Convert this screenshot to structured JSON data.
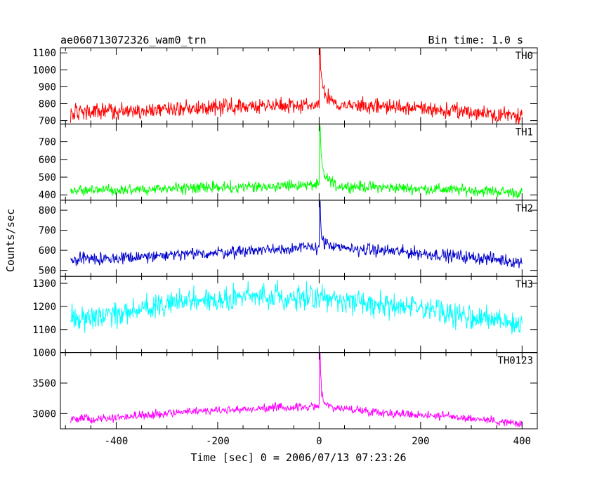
{
  "header": {
    "left": "ae060713072326_wam0_trn",
    "right": "Bin time: 1.0 s"
  },
  "chart_data": {
    "type": "line",
    "xlabel": "Time [sec] 0 = 2006/07/13 07:23:26",
    "ylabel": "Counts/sec",
    "xlim": [
      -510,
      430
    ],
    "xticks": [
      -400,
      -200,
      0,
      200,
      400
    ],
    "xrange": [
      -490,
      400
    ],
    "panels": [
      {
        "name": "TH0",
        "color": "#ff0000",
        "ylim": [
          680,
          1130
        ],
        "yticks": [
          700,
          800,
          900,
          1000,
          1100
        ],
        "baseline": [
          [
            -490,
            745
          ],
          [
            -400,
            755
          ],
          [
            -250,
            775
          ],
          [
            -100,
            790
          ],
          [
            -10,
            795
          ],
          [
            50,
            790
          ],
          [
            150,
            780
          ],
          [
            250,
            760
          ],
          [
            350,
            740
          ],
          [
            400,
            725
          ]
        ],
        "noise": 32,
        "peak": {
          "x": 2,
          "y": 1125,
          "decay": [
            [
              5,
              960
            ],
            [
              10,
              880
            ],
            [
              20,
              830
            ]
          ]
        }
      },
      {
        "name": "TH1",
        "color": "#00ff00",
        "ylim": [
          370,
          800
        ],
        "yticks": [
          400,
          500,
          600,
          700
        ],
        "baseline": [
          [
            -490,
            425
          ],
          [
            -400,
            430
          ],
          [
            -250,
            440
          ],
          [
            -100,
            450
          ],
          [
            -10,
            455
          ],
          [
            50,
            450
          ],
          [
            150,
            440
          ],
          [
            250,
            430
          ],
          [
            350,
            420
          ],
          [
            400,
            410
          ]
        ],
        "noise": 22,
        "peak": {
          "x": 2,
          "y": 790,
          "decay": [
            [
              5,
              600
            ],
            [
              10,
              520
            ],
            [
              20,
              485
            ]
          ]
        }
      },
      {
        "name": "TH2",
        "color": "#0000cc",
        "ylim": [
          470,
          850
        ],
        "yticks": [
          500,
          600,
          700,
          800
        ],
        "baseline": [
          [
            -490,
            555
          ],
          [
            -400,
            560
          ],
          [
            -250,
            580
          ],
          [
            -100,
            605
          ],
          [
            -10,
            615
          ],
          [
            50,
            610
          ],
          [
            150,
            595
          ],
          [
            250,
            575
          ],
          [
            350,
            555
          ],
          [
            400,
            540
          ]
        ],
        "noise": 22,
        "peak": {
          "x": 2,
          "y": 845,
          "decay": [
            [
              5,
              680
            ],
            [
              10,
              640
            ],
            [
              20,
              625
            ]
          ]
        }
      },
      {
        "name": "TH3",
        "color": "#00ffff",
        "ylim": [
          1000,
          1330
        ],
        "yticks": [
          1000,
          1100,
          1200,
          1300
        ],
        "baseline": [
          [
            -490,
            1140
          ],
          [
            -400,
            1170
          ],
          [
            -250,
            1225
          ],
          [
            -100,
            1245
          ],
          [
            -10,
            1240
          ],
          [
            50,
            1225
          ],
          [
            150,
            1200
          ],
          [
            250,
            1170
          ],
          [
            350,
            1140
          ],
          [
            400,
            1110
          ]
        ],
        "noise": 38,
        "peak": null
      },
      {
        "name": "TH0123",
        "color": "#ff00ff",
        "ylim": [
          2750,
          4000
        ],
        "yticks": [
          3000,
          3500
        ],
        "baseline": [
          [
            -490,
            2905
          ],
          [
            -400,
            2935
          ],
          [
            -250,
            3040
          ],
          [
            -100,
            3090
          ],
          [
            -10,
            3110
          ],
          [
            50,
            3080
          ],
          [
            150,
            3000
          ],
          [
            250,
            2960
          ],
          [
            350,
            2880
          ],
          [
            400,
            2820
          ]
        ],
        "noise": 48,
        "peak": {
          "x": 2,
          "y": 3990,
          "decay": [
            [
              5,
              3400
            ],
            [
              10,
              3200
            ],
            [
              20,
              3130
            ]
          ]
        }
      }
    ]
  }
}
